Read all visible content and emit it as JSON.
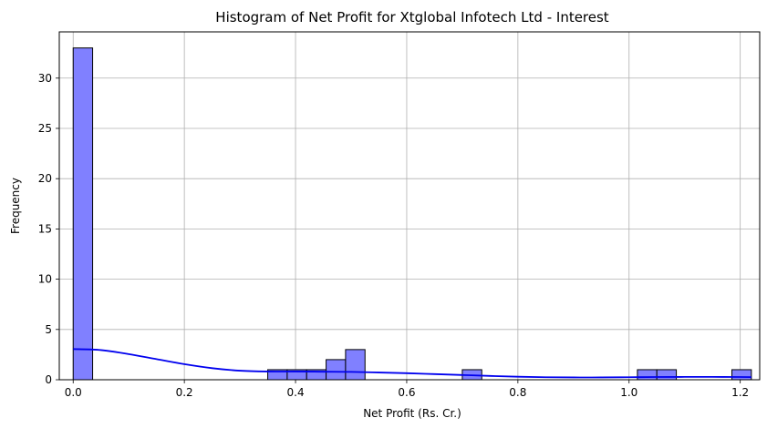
{
  "chart_data": {
    "type": "bar",
    "title": "Histogram of Net Profit for Xtglobal Infotech Ltd - Interest",
    "xlabel": "Net Profit (Rs. Cr.)",
    "ylabel": "Frequency",
    "xlim": [
      -0.025,
      1.235
    ],
    "ylim": [
      0,
      34.6
    ],
    "xticks": [
      0.0,
      0.2,
      0.4,
      0.6,
      0.8,
      1.0,
      1.2
    ],
    "xtick_labels": [
      "0.0",
      "0.2",
      "0.4",
      "0.6",
      "0.8",
      "1.0",
      "1.2"
    ],
    "yticks": [
      0,
      5,
      10,
      15,
      20,
      25,
      30
    ],
    "ytick_labels": [
      "0",
      "5",
      "10",
      "15",
      "20",
      "25",
      "30"
    ],
    "grid": true,
    "bar_fill": "#8080ff",
    "bar_edge": "#000000",
    "kde_color": "#0000ee",
    "bins": [
      {
        "x0": 0.0,
        "x1": 0.035,
        "count": 33
      },
      {
        "x0": 0.35,
        "x1": 0.385,
        "count": 1
      },
      {
        "x0": 0.385,
        "x1": 0.42,
        "count": 1
      },
      {
        "x0": 0.42,
        "x1": 0.455,
        "count": 1
      },
      {
        "x0": 0.455,
        "x1": 0.49,
        "count": 2
      },
      {
        "x0": 0.49,
        "x1": 0.525,
        "count": 3
      },
      {
        "x0": 0.7,
        "x1": 0.735,
        "count": 1
      },
      {
        "x0": 1.015,
        "x1": 1.05,
        "count": 1
      },
      {
        "x0": 1.05,
        "x1": 1.085,
        "count": 1
      },
      {
        "x0": 1.185,
        "x1": 1.22,
        "count": 1
      }
    ],
    "kde": {
      "x": [
        0.0,
        0.05,
        0.1,
        0.15,
        0.2,
        0.25,
        0.3,
        0.35,
        0.4,
        0.45,
        0.5,
        0.55,
        0.6,
        0.65,
        0.7,
        0.75,
        0.8,
        0.85,
        0.9,
        0.95,
        1.0,
        1.05,
        1.1,
        1.15,
        1.2,
        1.22
      ],
      "y": [
        3.05,
        2.95,
        2.55,
        2.05,
        1.55,
        1.15,
        0.9,
        0.82,
        0.82,
        0.8,
        0.78,
        0.72,
        0.65,
        0.56,
        0.47,
        0.38,
        0.3,
        0.25,
        0.23,
        0.23,
        0.25,
        0.27,
        0.28,
        0.28,
        0.27,
        0.26
      ]
    }
  }
}
